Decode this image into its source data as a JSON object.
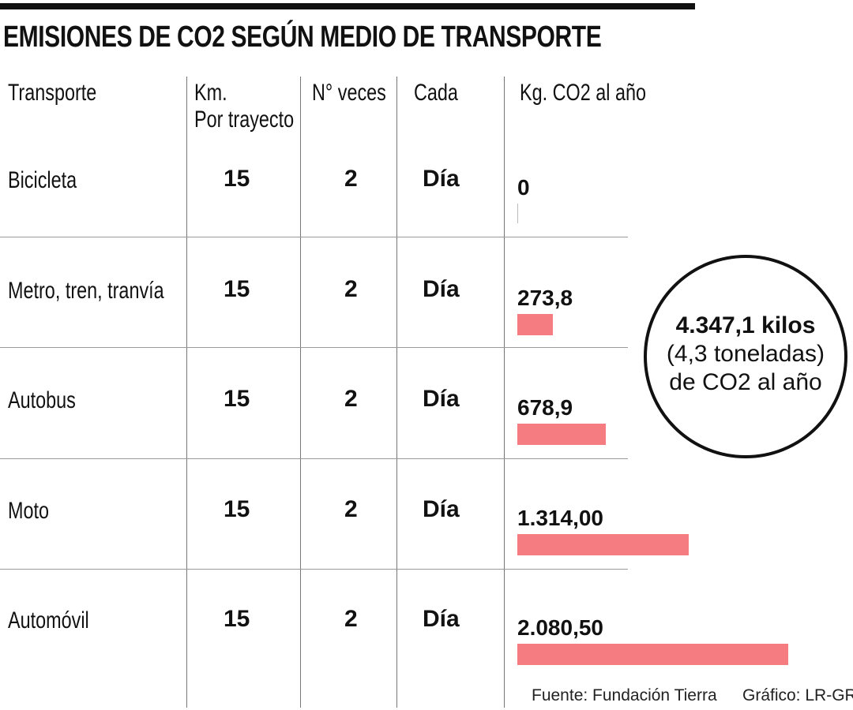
{
  "chart_data": {
    "type": "table",
    "title": "EMISIONES DE CO2 SEGÚN MEDIO DE TRANSPORTE",
    "columns": [
      "Transporte",
      "Km. Por trayecto",
      "N° veces",
      "Cada",
      "Kg. CO2 al año"
    ],
    "column_lines": {
      "km_1": "Km.",
      "km_2": "Por trayecto"
    },
    "rows": [
      {
        "transporte": "Bicicleta",
        "km": "15",
        "veces": "2",
        "cada": "Día",
        "kg_label": "0",
        "kg": 0
      },
      {
        "transporte": "Metro, tren, tranvía",
        "km": "15",
        "veces": "2",
        "cada": "Día",
        "kg_label": "273,8",
        "kg": 273.8
      },
      {
        "transporte": "Autobus",
        "km": "15",
        "veces": "2",
        "cada": "Día",
        "kg_label": "678,9",
        "kg": 678.9
      },
      {
        "transporte": "Moto",
        "km": "15",
        "veces": "2",
        "cada": "Día",
        "kg_label": "1.314,00",
        "kg": 1314.0
      },
      {
        "transporte": "Automóvil",
        "km": "15",
        "veces": "2",
        "cada": "Día",
        "kg_label": "2.080,50",
        "kg": 2080.5
      }
    ],
    "bar_color": "#f57c80",
    "callout": {
      "line1": "4.347,1 kilos",
      "line2": "(4,3 toneladas)",
      "line3": "de CO2 al año"
    },
    "source": "Fuente: Fundación Tierra",
    "credit": "Gráfico: LR-GR"
  }
}
